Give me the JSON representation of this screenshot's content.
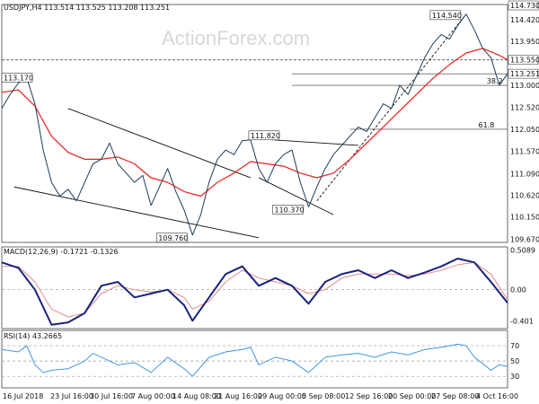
{
  "chart_data": {
    "type": "line",
    "symbol_header": "USDJPY,H4  113.514 113.525 113.208 113.251",
    "watermark": "ActionForex.com",
    "x_labels": [
      "16 Jul 2018",
      "23 Jul 16:00",
      "30 Jul 16:00",
      "7 Aug 00:00",
      "14 Aug 08:00",
      "21 Aug 16:00",
      "29 Aug 00:00",
      "5 Sep 08:00",
      "12 Sep 16:00",
      "20 Sep 00:00",
      "27 Sep 08:00",
      "4 Oct 16:00"
    ],
    "price_panel": {
      "y_ticks": [
        "114.730",
        "114.420",
        "113.950",
        "113.550",
        "113.251",
        "113.000",
        "112.520",
        "112.050",
        "111.570",
        "111.090",
        "110.620",
        "110.150",
        "109.670"
      ],
      "price_path": [
        [
          0,
          112.5
        ],
        [
          2,
          112.8
        ],
        [
          4,
          113.05
        ],
        [
          6,
          113.17
        ],
        [
          8,
          112.6
        ],
        [
          10,
          111.6
        ],
        [
          12,
          110.9
        ],
        [
          14,
          110.6
        ],
        [
          16,
          110.75
        ],
        [
          18,
          110.5
        ],
        [
          20,
          110.9
        ],
        [
          22,
          111.3
        ],
        [
          24,
          111.4
        ],
        [
          26,
          111.75
        ],
        [
          28,
          111.3
        ],
        [
          30,
          111.1
        ],
        [
          32,
          110.9
        ],
        [
          34,
          111.05
        ],
        [
          36,
          110.4
        ],
        [
          38,
          110.8
        ],
        [
          40,
          111.2
        ],
        [
          42,
          110.7
        ],
        [
          44,
          110.3
        ],
        [
          46,
          109.76
        ],
        [
          48,
          110.2
        ],
        [
          50,
          110.9
        ],
        [
          52,
          111.4
        ],
        [
          54,
          111.6
        ],
        [
          56,
          111.5
        ],
        [
          58,
          111.8
        ],
        [
          60,
          111.82
        ],
        [
          62,
          111.2
        ],
        [
          64,
          110.9
        ],
        [
          66,
          111.3
        ],
        [
          68,
          111.5
        ],
        [
          70,
          111.6
        ],
        [
          72,
          110.9
        ],
        [
          74,
          110.37
        ],
        [
          76,
          110.8
        ],
        [
          78,
          111.2
        ],
        [
          80,
          111.5
        ],
        [
          82,
          111.7
        ],
        [
          84,
          111.9
        ],
        [
          86,
          112.1
        ],
        [
          88,
          112.0
        ],
        [
          90,
          112.3
        ],
        [
          92,
          112.6
        ],
        [
          94,
          112.5
        ],
        [
          96,
          113.0
        ],
        [
          98,
          112.8
        ],
        [
          100,
          113.2
        ],
        [
          102,
          113.6
        ],
        [
          104,
          113.9
        ],
        [
          106,
          114.1
        ],
        [
          108,
          114.0
        ],
        [
          110,
          114.3
        ],
        [
          112,
          114.54
        ],
        [
          114,
          114.2
        ],
        [
          116,
          113.8
        ],
        [
          118,
          113.6
        ],
        [
          120,
          113.0
        ],
        [
          122,
          113.25
        ]
      ],
      "ma_path": [
        [
          0,
          112.85
        ],
        [
          4,
          112.9
        ],
        [
          8,
          112.55
        ],
        [
          12,
          111.9
        ],
        [
          16,
          111.55
        ],
        [
          20,
          111.4
        ],
        [
          24,
          111.4
        ],
        [
          28,
          111.45
        ],
        [
          32,
          111.3
        ],
        [
          36,
          111.0
        ],
        [
          40,
          110.9
        ],
        [
          44,
          110.7
        ],
        [
          48,
          110.6
        ],
        [
          52,
          110.9
        ],
        [
          56,
          111.1
        ],
        [
          60,
          111.35
        ],
        [
          64,
          111.3
        ],
        [
          68,
          111.25
        ],
        [
          72,
          111.1
        ],
        [
          76,
          111.0
        ],
        [
          80,
          111.1
        ],
        [
          84,
          111.4
        ],
        [
          88,
          111.75
        ],
        [
          92,
          112.1
        ],
        [
          96,
          112.45
        ],
        [
          100,
          112.8
        ],
        [
          104,
          113.15
        ],
        [
          108,
          113.45
        ],
        [
          112,
          113.7
        ],
        [
          116,
          113.8
        ],
        [
          120,
          113.65
        ],
        [
          122,
          113.55
        ]
      ],
      "labels": [
        {
          "text": "113.170",
          "x": 3,
          "y": 113.17
        },
        {
          "text": "111.820",
          "x": 60,
          "y": 111.82
        },
        {
          "text": "109.760",
          "x": 46,
          "y": 109.76
        },
        {
          "text": "110.370",
          "x": 74,
          "y": 110.37
        },
        {
          "text": "114.540",
          "x": 112,
          "y": 114.54
        },
        {
          "text": "61.8",
          "x": 118,
          "y": 112.05
        },
        {
          "text": "38.2",
          "x": 120,
          "y": 113.0
        }
      ],
      "hlines": [
        113.55,
        113.25,
        113.0,
        112.05
      ],
      "trendlines": [
        [
          [
            16,
            112.5
          ],
          [
            60,
            111.0
          ]
        ],
        [
          [
            3,
            110.8
          ],
          [
            62,
            109.7
          ]
        ],
        [
          [
            60,
            111.85
          ],
          [
            86,
            111.7
          ]
        ],
        [
          [
            62,
            111.0
          ],
          [
            80,
            110.2
          ]
        ],
        [
          [
            76,
            110.5
          ],
          [
            112,
            114.54
          ]
        ]
      ]
    },
    "macd_panel": {
      "label": "MACD(12,26,9) -0.1721 -0.1326",
      "y_ticks": [
        "0.5089",
        "0.00",
        "-0.401"
      ],
      "macd": [
        [
          0,
          0.35
        ],
        [
          4,
          0.28
        ],
        [
          8,
          0.0
        ],
        [
          12,
          -0.45
        ],
        [
          16,
          -0.42
        ],
        [
          20,
          -0.3
        ],
        [
          24,
          0.05
        ],
        [
          28,
          0.1
        ],
        [
          32,
          -0.1
        ],
        [
          36,
          -0.05
        ],
        [
          40,
          0.0
        ],
        [
          44,
          -0.2
        ],
        [
          46,
          -0.4
        ],
        [
          50,
          -0.1
        ],
        [
          54,
          0.2
        ],
        [
          58,
          0.3
        ],
        [
          62,
          0.05
        ],
        [
          66,
          0.15
        ],
        [
          70,
          0.05
        ],
        [
          74,
          -0.18
        ],
        [
          78,
          0.1
        ],
        [
          82,
          0.2
        ],
        [
          86,
          0.25
        ],
        [
          90,
          0.15
        ],
        [
          94,
          0.25
        ],
        [
          98,
          0.15
        ],
        [
          102,
          0.22
        ],
        [
          106,
          0.3
        ],
        [
          110,
          0.4
        ],
        [
          114,
          0.35
        ],
        [
          118,
          0.1
        ],
        [
          122,
          -0.17
        ]
      ],
      "signal": [
        [
          0,
          0.3
        ],
        [
          4,
          0.3
        ],
        [
          8,
          0.1
        ],
        [
          12,
          -0.25
        ],
        [
          16,
          -0.35
        ],
        [
          20,
          -0.3
        ],
        [
          24,
          -0.05
        ],
        [
          28,
          0.05
        ],
        [
          32,
          0.0
        ],
        [
          36,
          -0.03
        ],
        [
          40,
          0.0
        ],
        [
          44,
          -0.1
        ],
        [
          46,
          -0.25
        ],
        [
          50,
          -0.15
        ],
        [
          54,
          0.1
        ],
        [
          58,
          0.25
        ],
        [
          62,
          0.15
        ],
        [
          66,
          0.1
        ],
        [
          70,
          0.05
        ],
        [
          74,
          -0.05
        ],
        [
          78,
          0.0
        ],
        [
          82,
          0.15
        ],
        [
          86,
          0.2
        ],
        [
          90,
          0.2
        ],
        [
          94,
          0.2
        ],
        [
          98,
          0.18
        ],
        [
          102,
          0.2
        ],
        [
          106,
          0.25
        ],
        [
          110,
          0.32
        ],
        [
          114,
          0.35
        ],
        [
          118,
          0.2
        ],
        [
          122,
          -0.13
        ]
      ]
    },
    "rsi_panel": {
      "label": "RSI(14) 43.2665",
      "y_ticks": [
        "70",
        "50",
        "30"
      ],
      "rsi": [
        [
          0,
          65
        ],
        [
          4,
          62
        ],
        [
          6,
          70
        ],
        [
          8,
          45
        ],
        [
          10,
          35
        ],
        [
          12,
          38
        ],
        [
          16,
          40
        ],
        [
          20,
          50
        ],
        [
          22,
          60
        ],
        [
          24,
          55
        ],
        [
          28,
          45
        ],
        [
          32,
          48
        ],
        [
          36,
          35
        ],
        [
          40,
          55
        ],
        [
          44,
          40
        ],
        [
          46,
          30
        ],
        [
          50,
          55
        ],
        [
          54,
          62
        ],
        [
          58,
          65
        ],
        [
          60,
          68
        ],
        [
          62,
          45
        ],
        [
          66,
          55
        ],
        [
          70,
          50
        ],
        [
          74,
          35
        ],
        [
          78,
          55
        ],
        [
          82,
          58
        ],
        [
          86,
          60
        ],
        [
          90,
          55
        ],
        [
          94,
          62
        ],
        [
          98,
          58
        ],
        [
          102,
          65
        ],
        [
          106,
          68
        ],
        [
          110,
          72
        ],
        [
          112,
          70
        ],
        [
          114,
          55
        ],
        [
          118,
          38
        ],
        [
          120,
          45
        ],
        [
          122,
          43
        ]
      ]
    }
  }
}
